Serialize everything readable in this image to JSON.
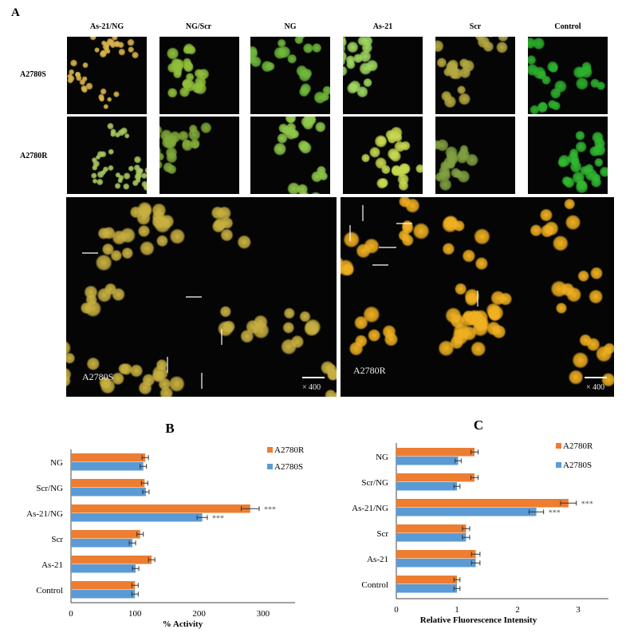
{
  "panel_a": {
    "letter": "A",
    "columns": [
      "As-21/NG",
      "NG/Scr",
      "NG",
      "As-21",
      "Scr",
      "Control"
    ],
    "rows": [
      "A2780S",
      "A2780R"
    ],
    "tints": [
      [
        "#d9b24a",
        "#a8c860"
      ],
      [
        "#8fbf3a",
        "#7fa838"
      ],
      [
        "#6fb83a",
        "#8fc84a"
      ],
      [
        "#9fd860",
        "#c8d850"
      ],
      [
        "#b4a840",
        "#7fa040"
      ],
      [
        "#2cb02c",
        "#30b830"
      ]
    ],
    "large_panels": [
      {
        "label": "A2780S",
        "scale": "× 400",
        "tint": "#c8b040"
      },
      {
        "label": "A2780R",
        "scale": "× 400",
        "tint": "#f0b020"
      }
    ]
  },
  "chart_data": [
    {
      "type": "bar",
      "orientation": "horizontal",
      "panel": "B",
      "title": "B",
      "xlabel": "% Activity",
      "ylabel": "",
      "xlim": [
        0,
        350
      ],
      "xticks": [
        0,
        100,
        200,
        300
      ],
      "categories": [
        "NG",
        "Scr/NG",
        "As-21/NG",
        "Scr",
        "As-21",
        "Control"
      ],
      "series": [
        {
          "name": "A2780R",
          "color": "#ed7d31",
          "values": [
            116,
            115,
            280,
            108,
            126,
            100
          ],
          "errors": [
            5,
            5,
            14,
            5,
            5,
            5
          ]
        },
        {
          "name": "A2780S",
          "color": "#5b9bd5",
          "values": [
            113,
            117,
            205,
            96,
            101,
            100
          ],
          "errors": [
            5,
            5,
            8,
            5,
            5,
            5
          ]
        }
      ],
      "annotations": [
        {
          "category": "As-21/NG",
          "series": "A2780R",
          "text": "***"
        },
        {
          "category": "As-21/NG",
          "series": "A2780S",
          "text": "***"
        }
      ],
      "legend": "top-right",
      "grid": false
    },
    {
      "type": "bar",
      "orientation": "horizontal",
      "panel": "C",
      "title": "C",
      "xlabel": "Relative Fluorescence Intensity",
      "ylabel": "",
      "xlim": [
        0,
        3.5
      ],
      "xticks": [
        0,
        1,
        2,
        3
      ],
      "categories": [
        "NG",
        "Scr/NG",
        "As-21/NG",
        "Scr",
        "As-21",
        "Control"
      ],
      "series": [
        {
          "name": "A2780R",
          "color": "#ed7d31",
          "values": [
            1.29,
            1.29,
            2.84,
            1.15,
            1.31,
            1.0
          ],
          "errors": [
            0.06,
            0.06,
            0.13,
            0.06,
            0.07,
            0.05
          ]
        },
        {
          "name": "A2780S",
          "color": "#5b9bd5",
          "values": [
            1.02,
            1.0,
            2.31,
            1.15,
            1.31,
            1.0
          ],
          "errors": [
            0.05,
            0.05,
            0.12,
            0.06,
            0.07,
            0.05
          ]
        }
      ],
      "annotations": [
        {
          "category": "As-21/NG",
          "series": "A2780R",
          "text": "***"
        },
        {
          "category": "As-21/NG",
          "series": "A2780S",
          "text": "***"
        }
      ],
      "legend": "top-right",
      "grid": false
    }
  ]
}
